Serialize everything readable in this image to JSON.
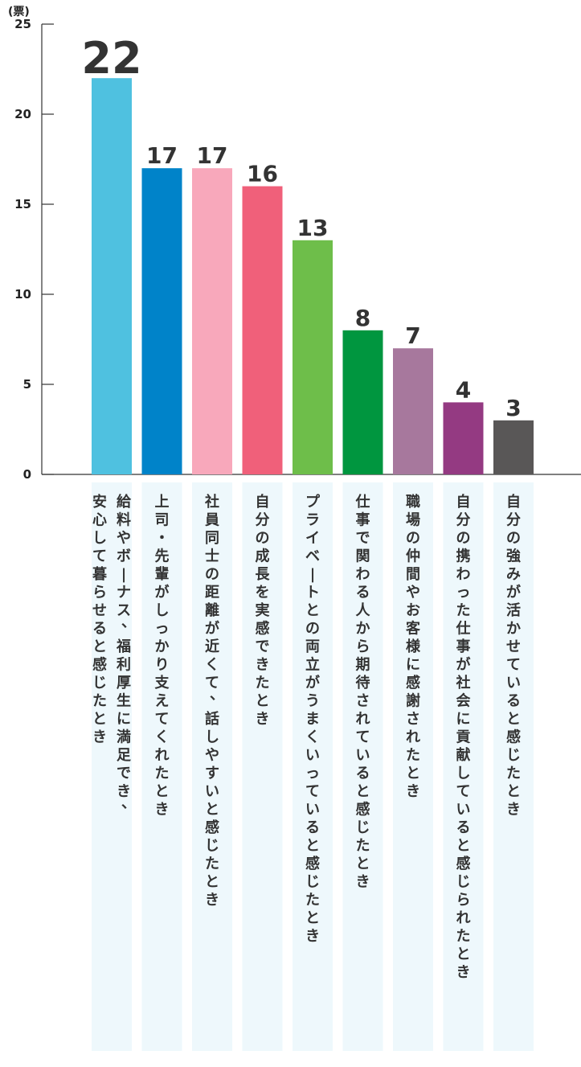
{
  "chart_data": {
    "type": "bar",
    "unit_label": "(票)",
    "ylim": [
      0,
      25
    ],
    "yticks": [
      0,
      5,
      10,
      15,
      20,
      25
    ],
    "categories": [
      "給料やボーナス、福利厚生に満足でき、安心して暮らせると感じたとき",
      "上司・先輩がしっかり支えてくれたとき",
      "社員同士の距離が近くて、話しやすいと感じたとき",
      "自分の成長を実感できたとき",
      "プライベートとの両立がうまくいっていると感じたとき",
      "仕事で関わる人から期待されていると感じたとき",
      "職場の仲間やお客様に感謝されたとき",
      "自分の携わった仕事が社会に貢献していると感じられたとき",
      "自分の強みが活かせていると感じたとき"
    ],
    "values": [
      22,
      17,
      17,
      16,
      13,
      8,
      7,
      4,
      3
    ],
    "colors": [
      "#4fc1e0",
      "#0083c9",
      "#f8a8bb",
      "#f0607a",
      "#6ebe4a",
      "#00963f",
      "#a7789d",
      "#943a82",
      "#595757"
    ],
    "label_background": "#eef8fc",
    "grid": false
  }
}
